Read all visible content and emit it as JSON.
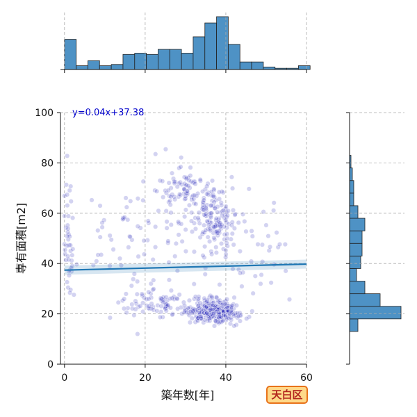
{
  "chart_data": {
    "type": "scatter",
    "xlabel": "築年数[年]",
    "ylabel": "専有面積[m2]",
    "xlim": [
      -1,
      60
    ],
    "ylim": [
      0,
      100
    ],
    "xticks": [
      0,
      20,
      40,
      60
    ],
    "yticks": [
      0,
      20,
      40,
      60,
      80,
      100
    ],
    "grid": true,
    "regression": {
      "label": "y=0.04x+37.38",
      "slope": 0.04,
      "intercept": 37.38
    },
    "region_label": "天白区",
    "colors": {
      "points": "#2222bb",
      "regression_line": "#1f77b4",
      "histogram": "#4e92c5",
      "annotation_text": "#0000cc",
      "grid": "#aaaaaa"
    },
    "top_histogram": {
      "bin_start": 0,
      "bin_width": 2.9,
      "counts": [
        24,
        3,
        7,
        3,
        4,
        12,
        13,
        12,
        16,
        16,
        13,
        26,
        37,
        42,
        20,
        6,
        6,
        2,
        1,
        1,
        3
      ]
    },
    "right_histogram": {
      "bin_start": 13,
      "bin_width": 5,
      "counts": [
        6,
        37,
        22,
        11,
        5,
        8,
        9,
        9,
        11,
        6,
        3,
        3,
        2,
        1,
        0,
        0,
        0,
        0
      ]
    }
  }
}
